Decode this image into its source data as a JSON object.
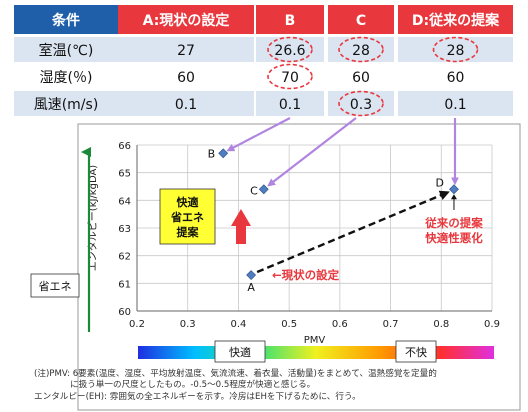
{
  "table": {
    "headers": [
      "条件",
      "A:現状の設定",
      "B",
      "C",
      "D:従来の提案"
    ],
    "rows": [
      {
        "label": "室温(℃)",
        "values": [
          "27",
          "26.6",
          "28",
          "28"
        ],
        "circled": [
          false,
          true,
          true,
          true
        ]
      },
      {
        "label": "湿度(％)",
        "values": [
          "60",
          "70",
          "60",
          "60"
        ],
        "circled": [
          false,
          true,
          false,
          false
        ]
      },
      {
        "label": "風速(m/s)",
        "values": [
          "0.1",
          "0.1",
          "0.3",
          "0.1"
        ],
        "circled": [
          false,
          false,
          true,
          false
        ]
      }
    ],
    "colors": {
      "header_bg": "#1f5faa",
      "header_accent": "#e8383d",
      "row_a": "#dbe4f1",
      "row_b": "#ffffff",
      "circle": "#e8383d"
    }
  },
  "chart_data": {
    "type": "scatter",
    "ylabel": "エンタルピー(kJ/kgDA)",
    "x_ticks": [
      "0.2",
      "0.3",
      "0.4",
      "0.5",
      "0.6",
      "0.7",
      "0.8",
      "0.9"
    ],
    "y_ticks": [
      "60",
      "61",
      "62",
      "63",
      "64",
      "65",
      "66"
    ],
    "xlim": [
      0.2,
      0.9
    ],
    "ylim": [
      60,
      66
    ],
    "grid": true,
    "points": [
      {
        "label": "A",
        "x": 0.425,
        "y": 61.3
      },
      {
        "label": "B",
        "x": 0.37,
        "y": 65.7
      },
      {
        "label": "C",
        "x": 0.45,
        "y": 64.4
      },
      {
        "label": "D",
        "x": 0.825,
        "y": 64.4
      }
    ],
    "annotations": {
      "comfort_box": [
        "快適",
        "省エネ",
        "提案"
      ],
      "current_setting": "←現状の設定",
      "previous_proposal": [
        "従来の提案",
        "快適性悪化"
      ],
      "energy_saving": "省エネ"
    },
    "pmv_bar": {
      "label": "PMV",
      "comfortable": "快適",
      "uncomfortable": "不快"
    },
    "colors": {
      "marker": "#4f7dc0",
      "accent": "#e8383d",
      "arrow_lilac": "#b085e0",
      "axis_arrow": "#1a8a3a",
      "comfort_box": "#ffff33"
    }
  },
  "notes": [
    "(注)PMV: 6要素(温度、湿度、平均放射温度、気流流速、着衣量、活動量)をまとめて、温熱感覚を定量的",
    "に扱う単一の尺度としたもの。-0.5～0.5程度が快適と感じる。",
    "エンタルピー(EH): 雰囲気の全エネルギーを示す。冷房はEHを下げるために、行う。"
  ]
}
